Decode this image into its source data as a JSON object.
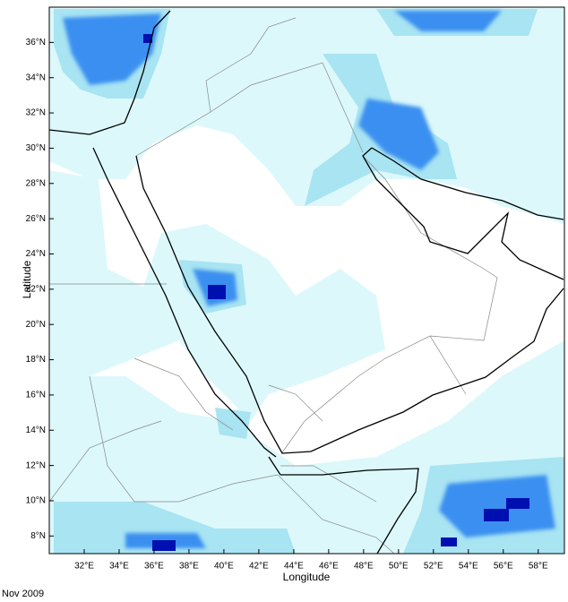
{
  "map": {
    "xlabel": "Longitude",
    "ylabel": "Latitude",
    "footer": "Nov 2009",
    "xlim": [
      30,
      59.5
    ],
    "ylim": [
      7,
      38
    ],
    "xticks": [
      {
        "value": 32,
        "label": "32°E"
      },
      {
        "value": 34,
        "label": "34°E"
      },
      {
        "value": 36,
        "label": "36°E"
      },
      {
        "value": 38,
        "label": "38°E"
      },
      {
        "value": 40,
        "label": "40°E"
      },
      {
        "value": 42,
        "label": "42°E"
      },
      {
        "value": 44,
        "label": "44°E"
      },
      {
        "value": 46,
        "label": "46°E"
      },
      {
        "value": 48,
        "label": "48°E"
      },
      {
        "value": 50,
        "label": "50°E"
      },
      {
        "value": 52,
        "label": "52°E"
      },
      {
        "value": 54,
        "label": "54°E"
      },
      {
        "value": 56,
        "label": "56°E"
      },
      {
        "value": 58,
        "label": "58°E"
      }
    ],
    "yticks": [
      {
        "value": 8,
        "label": "8°N"
      },
      {
        "value": 10,
        "label": "10°N"
      },
      {
        "value": 12,
        "label": "12°N"
      },
      {
        "value": 14,
        "label": "14°N"
      },
      {
        "value": 16,
        "label": "16°N"
      },
      {
        "value": 18,
        "label": "18°N"
      },
      {
        "value": 20,
        "label": "20°N"
      },
      {
        "value": 22,
        "label": "22°N"
      },
      {
        "value": 24,
        "label": "24°N"
      },
      {
        "value": 26,
        "label": "26°N"
      },
      {
        "value": 28,
        "label": "28°N"
      },
      {
        "value": 30,
        "label": "30°N"
      },
      {
        "value": 32,
        "label": "32°N"
      },
      {
        "value": 34,
        "label": "34°N"
      },
      {
        "value": 36,
        "label": "36°N"
      }
    ]
  }
}
